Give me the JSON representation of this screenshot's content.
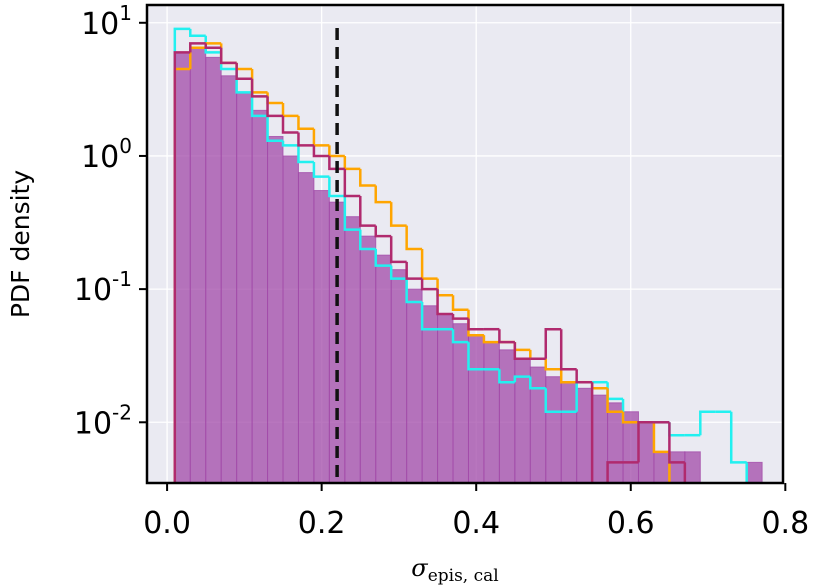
{
  "chart_data": {
    "type": "histogram",
    "y_label": "PDF density",
    "x_label": "σ",
    "x_label_sub": "epis, cal",
    "bins": [
      0.01,
      0.03,
      0.05,
      0.07,
      0.09,
      0.11,
      0.13,
      0.15,
      0.17,
      0.19,
      0.21,
      0.23,
      0.25,
      0.27,
      0.29,
      0.31,
      0.33,
      0.35,
      0.37,
      0.39,
      0.41,
      0.43,
      0.45,
      0.47,
      0.49,
      0.51,
      0.53,
      0.55,
      0.57,
      0.59,
      0.61,
      0.63,
      0.65,
      0.67,
      0.69,
      0.71,
      0.73,
      0.75,
      0.77
    ],
    "series": [
      {
        "color": "#a24aa8",
        "histtype": "stepfilled",
        "opacity": 0.75,
        "values": [
          6.0,
          6.5,
          5.5,
          4.0,
          3.0,
          2.2,
          1.4,
          1.0,
          0.75,
          0.55,
          0.45,
          0.35,
          0.25,
          0.18,
          0.14,
          0.1,
          0.075,
          0.065,
          0.055,
          0.045,
          0.04,
          0.035,
          0.03,
          0.026,
          0.022,
          0.02,
          0.018,
          0.016,
          0.014,
          0.012,
          0.01,
          0.006,
          0.006,
          0.006,
          0,
          0,
          0,
          0.005
        ]
      },
      {
        "color": "#22f0f0",
        "histtype": "step",
        "values": [
          9,
          8,
          6,
          4.5,
          3.0,
          2.0,
          1.3,
          1.2,
          0.9,
          0.7,
          0.5,
          0.28,
          0.2,
          0.15,
          0.12,
          0.08,
          0.05,
          0.05,
          0.04,
          0.025,
          0.025,
          0.02,
          0.022,
          0.018,
          0.012,
          0.012,
          0.02,
          0.02,
          0.015,
          0.01,
          0.01,
          0.01,
          0.008,
          0.008,
          0.012,
          0.012,
          0.005,
          0
        ]
      },
      {
        "color": "#ffa500",
        "histtype": "step",
        "values": [
          4.5,
          6.5,
          7,
          5,
          4.5,
          3.0,
          2.5,
          2.0,
          1.6,
          1.2,
          1.0,
          0.8,
          0.6,
          0.45,
          0.3,
          0.2,
          0.12,
          0.09,
          0.07,
          0.045,
          0.04,
          0.04,
          0.035,
          0.03,
          0.025,
          0.02,
          0.02,
          0.018,
          0.012,
          0.01,
          0.01,
          0.006,
          0,
          0,
          0,
          0,
          0,
          0
        ]
      },
      {
        "color": "#b02a6e",
        "histtype": "step",
        "values": [
          6,
          7,
          6.5,
          5,
          3.8,
          2.8,
          2.0,
          1.5,
          1.2,
          1.0,
          0.8,
          0.5,
          0.3,
          0.25,
          0.16,
          0.12,
          0.1,
          0.065,
          0.06,
          0.05,
          0.05,
          0.04,
          0.03,
          0.03,
          0.05,
          0.025,
          0.02,
          0,
          0.005,
          0.005,
          0.01,
          0.01,
          0.005,
          0,
          0,
          0,
          0,
          0
        ]
      }
    ],
    "vline": {
      "x": 0.22,
      "color": "#111111",
      "dashed": true
    },
    "xlim": [
      -0.026,
      0.797
    ],
    "xticks": [
      {
        "value": 0,
        "label": "0.0"
      },
      0.2,
      0.4,
      0.6,
      0.8
    ],
    "ylim": [
      0.0035,
      13.6
    ],
    "yscale": "log",
    "yticks": [
      {
        "value": 10,
        "label": "10",
        "exponent": "1"
      },
      {
        "value": 1,
        "label": "10",
        "exponent": "0"
      },
      {
        "value": 0.1,
        "label": "10",
        "exponent": "-1"
      },
      {
        "value": 0.01,
        "label": "10",
        "exponent": "-2"
      }
    ],
    "grid": true,
    "background": "#eaeaf2"
  }
}
